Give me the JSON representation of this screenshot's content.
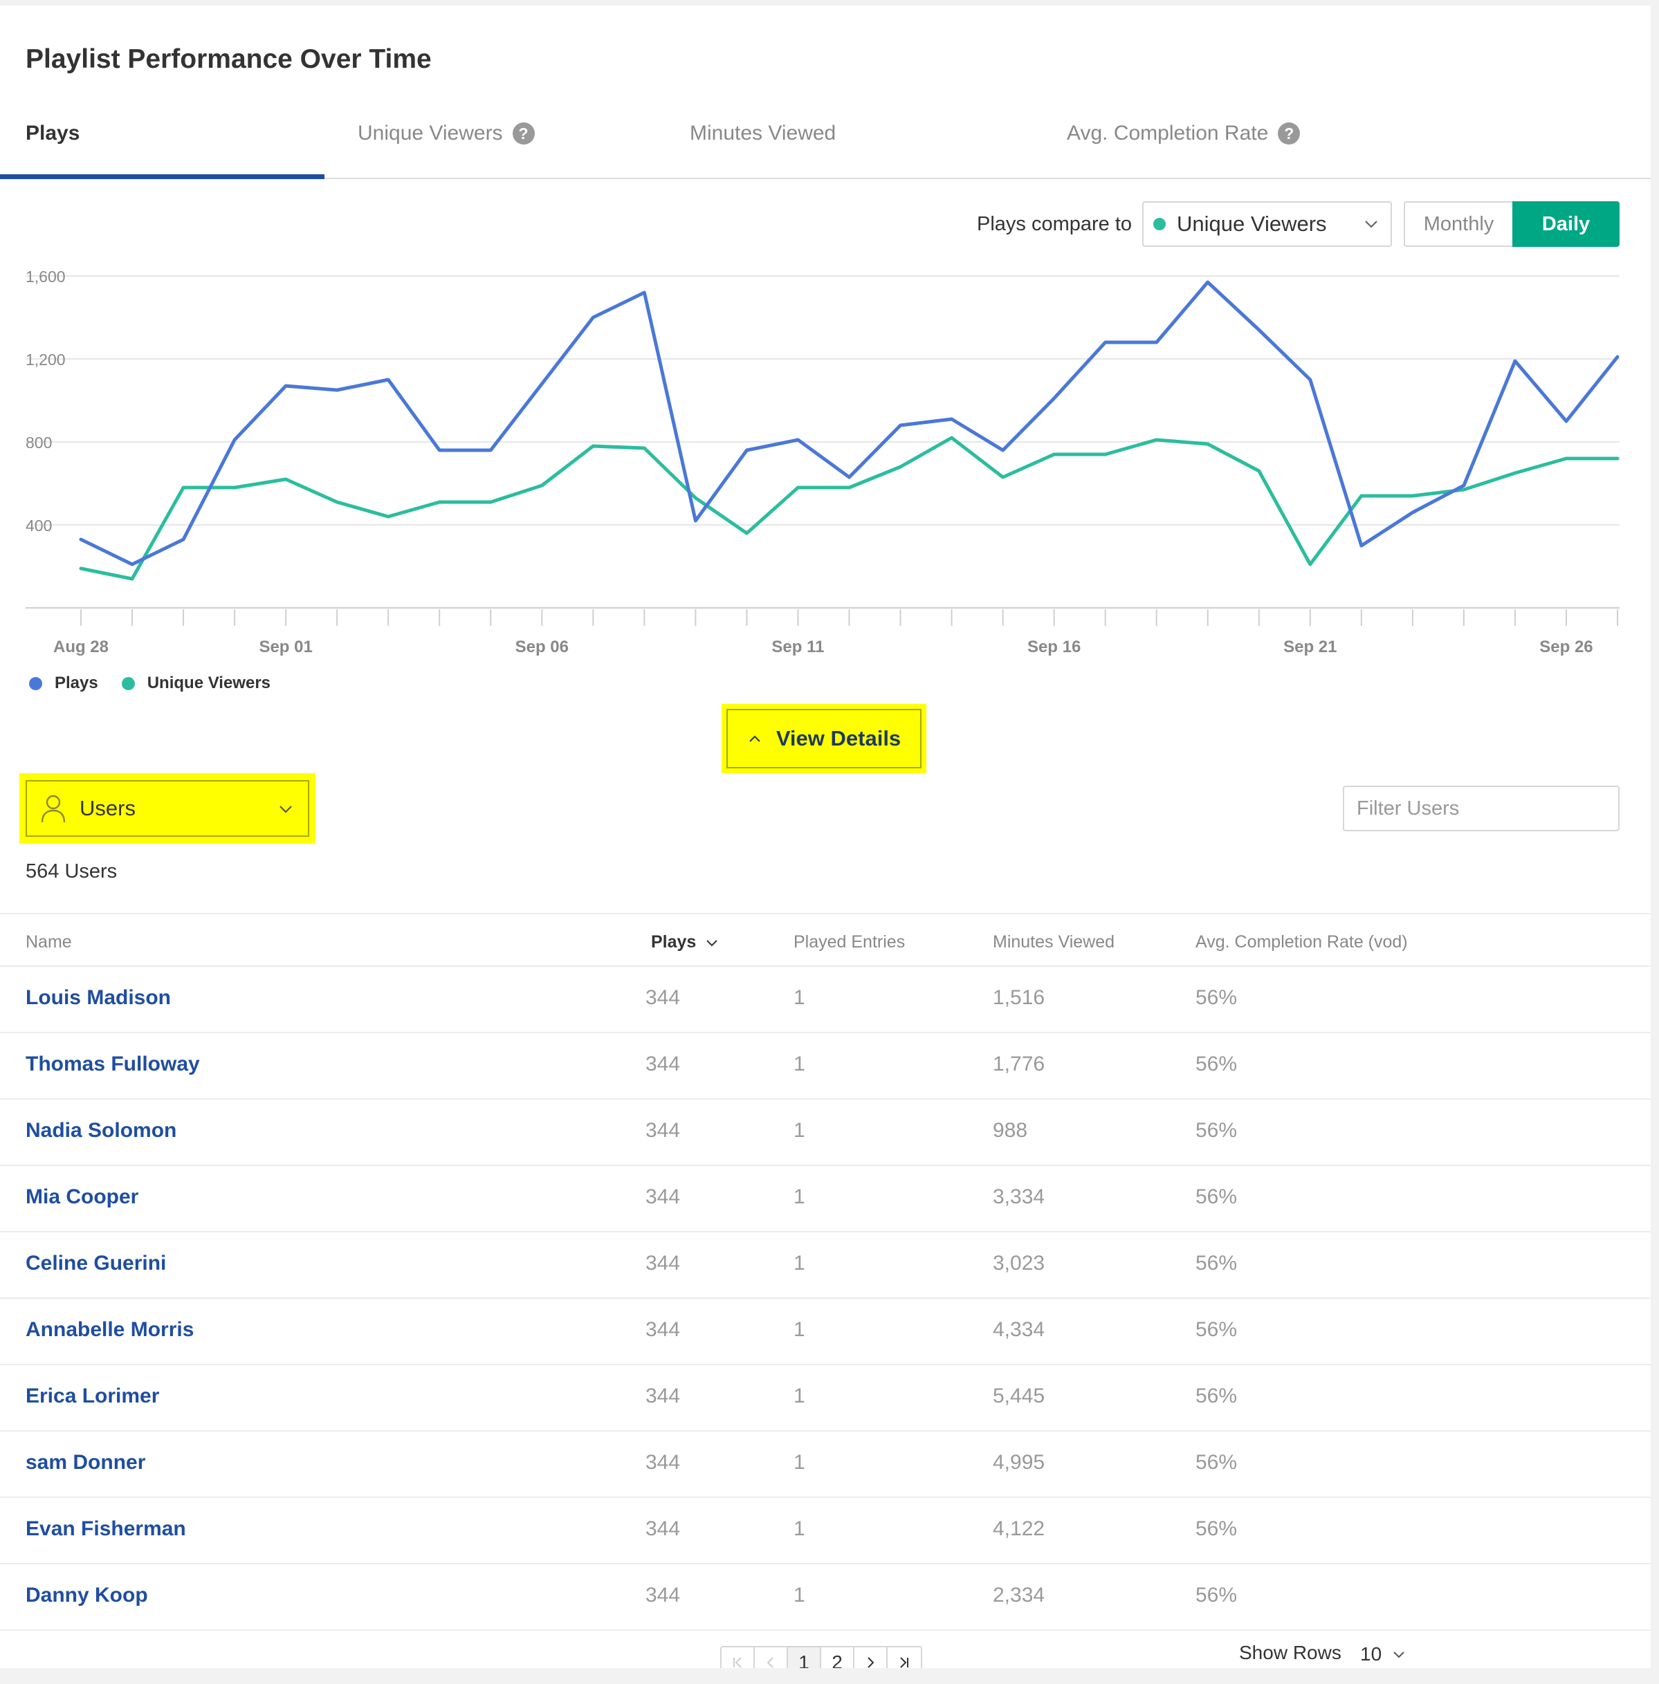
{
  "page": {
    "title": "Playlist Performance Over Time"
  },
  "tabs": [
    {
      "label": "Plays",
      "active": true,
      "help": false
    },
    {
      "label": "Unique Viewers",
      "active": false,
      "help": true
    },
    {
      "label": "Minutes Viewed",
      "active": false,
      "help": false
    },
    {
      "label": "Avg. Completion Rate",
      "active": false,
      "help": true
    }
  ],
  "controls": {
    "compare_label": "Plays compare to",
    "compare_value": "Unique Viewers",
    "compare_color": "#2bbd9e",
    "period_monthly": "Monthly",
    "period_daily": "Daily",
    "period_selected": "Daily"
  },
  "colors": {
    "plays": "#4a78d8",
    "unique_viewers": "#2bbd9e",
    "accent": "#00a784",
    "link": "#1f4ea0",
    "highlight": "#ffff00"
  },
  "chart_data": {
    "type": "line",
    "x": [
      "Aug 28",
      "Aug 29",
      "Aug 30",
      "Aug 31",
      "Sep 01",
      "Sep 02",
      "Sep 03",
      "Sep 04",
      "Sep 05",
      "Sep 06",
      "Sep 07",
      "Sep 08",
      "Sep 09",
      "Sep 10",
      "Sep 11",
      "Sep 12",
      "Sep 13",
      "Sep 14",
      "Sep 15",
      "Sep 16",
      "Sep 17",
      "Sep 18",
      "Sep 19",
      "Sep 20",
      "Sep 21",
      "Sep 22",
      "Sep 23",
      "Sep 24",
      "Sep 25",
      "Sep 26",
      "Sep 27"
    ],
    "x_tick_labels": [
      "Aug 28",
      "Sep 01",
      "Sep 06",
      "Sep 11",
      "Sep 16",
      "Sep 21",
      "Sep 26"
    ],
    "y_ticks": [
      "1,600",
      "1,200",
      "800",
      "400"
    ],
    "y_tick_values": [
      1600,
      1200,
      800,
      400
    ],
    "ylim": [
      0,
      1600
    ],
    "grid": true,
    "legend_position": "bottom-left",
    "series": [
      {
        "name": "Plays",
        "color": "#4a78d8",
        "values": [
          330,
          210,
          330,
          810,
          1070,
          1050,
          1100,
          760,
          760,
          1080,
          1400,
          1520,
          420,
          760,
          810,
          630,
          880,
          910,
          760,
          1010,
          1280,
          1280,
          1570,
          1340,
          1100,
          300,
          460,
          590,
          1190,
          900,
          1210
        ]
      },
      {
        "name": "Unique Viewers",
        "color": "#2bbd9e",
        "values": [
          190,
          140,
          580,
          580,
          620,
          510,
          440,
          510,
          510,
          590,
          780,
          770,
          530,
          360,
          580,
          580,
          680,
          820,
          630,
          740,
          740,
          810,
          790,
          660,
          210,
          540,
          540,
          570,
          650,
          720,
          720
        ]
      }
    ]
  },
  "legend": [
    {
      "label": "Plays",
      "color": "#4a78d8"
    },
    {
      "label": "Unique Viewers",
      "color": "#2bbd9e"
    }
  ],
  "details": {
    "toggle_label": "View Details"
  },
  "dimension": {
    "label": "Users",
    "count_label": "564 Users",
    "filter_placeholder": "Filter Users"
  },
  "table": {
    "headers": {
      "name": "Name",
      "plays": "Plays",
      "entries": "Played Entries",
      "minutes": "Minutes Viewed",
      "rate": "Avg. Completion Rate (vod)"
    },
    "rows": [
      {
        "name": "Louis Madison",
        "plays": "344",
        "entries": "1",
        "minutes": "1,516",
        "rate": "56%"
      },
      {
        "name": "Thomas Fulloway",
        "plays": "344",
        "entries": "1",
        "minutes": "1,776",
        "rate": "56%"
      },
      {
        "name": "Nadia Solomon",
        "plays": "344",
        "entries": "1",
        "minutes": "988",
        "rate": "56%"
      },
      {
        "name": "Mia Cooper",
        "plays": "344",
        "entries": "1",
        "minutes": "3,334",
        "rate": "56%"
      },
      {
        "name": "Celine Guerini",
        "plays": "344",
        "entries": "1",
        "minutes": "3,023",
        "rate": "56%"
      },
      {
        "name": "Annabelle Morris",
        "plays": "344",
        "entries": "1",
        "minutes": "4,334",
        "rate": "56%"
      },
      {
        "name": "Erica Lorimer",
        "plays": "344",
        "entries": "1",
        "minutes": "5,445",
        "rate": "56%"
      },
      {
        "name": "sam Donner",
        "plays": "344",
        "entries": "1",
        "minutes": "4,995",
        "rate": "56%"
      },
      {
        "name": "Evan Fisherman",
        "plays": "344",
        "entries": "1",
        "minutes": "4,122",
        "rate": "56%"
      },
      {
        "name": "Danny Koop",
        "plays": "344",
        "entries": "1",
        "minutes": "2,334",
        "rate": "56%"
      }
    ]
  },
  "pagination": {
    "pages": [
      "1",
      "2"
    ],
    "current": "1",
    "first_icon": "first-page-icon",
    "prev_icon": "prev-page-icon",
    "next_icon": "next-page-icon",
    "last_icon": "last-page-icon",
    "show_rows_label": "Show Rows",
    "rows_value": "10"
  }
}
